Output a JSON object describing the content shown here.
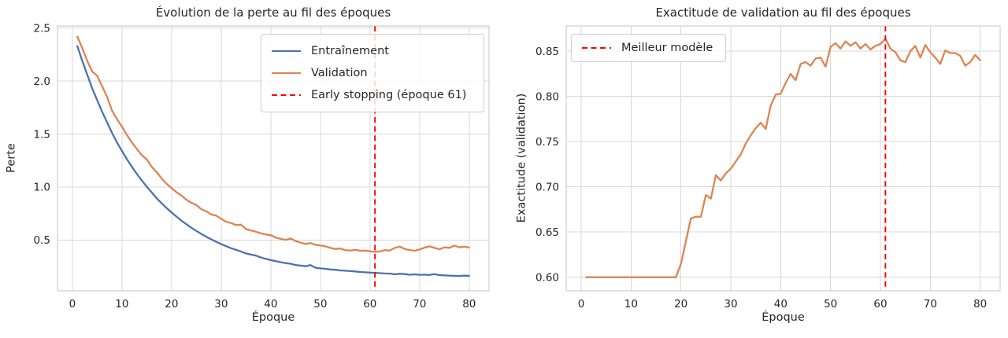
{
  "figure": {
    "background": "#ffffff",
    "text_color": "#262626",
    "grid_color": "#d8d8d8"
  },
  "chart_data": [
    {
      "type": "line",
      "title": "Évolution de la perte au fil des époques",
      "xlabel": "Époque",
      "ylabel": "Perte",
      "xlim": [
        -3,
        84
      ],
      "ylim": [
        0.02,
        2.52
      ],
      "xticks": [
        0,
        10,
        20,
        30,
        40,
        50,
        60,
        70,
        80
      ],
      "xtick_labels": [
        "0",
        "10",
        "20",
        "30",
        "40",
        "50",
        "60",
        "70",
        "80"
      ],
      "yticks": [
        0.5,
        1.0,
        1.5,
        2.0,
        2.5
      ],
      "ytick_labels": [
        "0.5",
        "1.0",
        "1.5",
        "2.0",
        "2.5"
      ],
      "grid": true,
      "legend_position": "upper right",
      "epochs": [
        1,
        2,
        3,
        4,
        5,
        6,
        7,
        8,
        9,
        10,
        11,
        12,
        13,
        14,
        15,
        16,
        17,
        18,
        19,
        20,
        21,
        22,
        23,
        24,
        25,
        26,
        27,
        28,
        29,
        30,
        31,
        32,
        33,
        34,
        35,
        36,
        37,
        38,
        39,
        40,
        41,
        42,
        43,
        44,
        45,
        46,
        47,
        48,
        49,
        50,
        51,
        52,
        53,
        54,
        55,
        56,
        57,
        58,
        59,
        60,
        61,
        62,
        63,
        64,
        65,
        66,
        67,
        68,
        69,
        70,
        71,
        72,
        73,
        74,
        75,
        76,
        77,
        78,
        79,
        80
      ],
      "series": [
        {
          "name": "Entraînement",
          "slug": "train-loss-line",
          "color": "#4c72b0",
          "style": "solid",
          "values": [
            2.33,
            2.19,
            2.06,
            1.93,
            1.82,
            1.71,
            1.61,
            1.51,
            1.42,
            1.34,
            1.262,
            1.19,
            1.123,
            1.061,
            1.003,
            0.948,
            0.893,
            0.846,
            0.801,
            0.759,
            0.72,
            0.682,
            0.648,
            0.615,
            0.585,
            0.557,
            0.53,
            0.506,
            0.483,
            0.461,
            0.441,
            0.422,
            0.407,
            0.39,
            0.373,
            0.362,
            0.352,
            0.335,
            0.322,
            0.31,
            0.3,
            0.291,
            0.281,
            0.276,
            0.263,
            0.258,
            0.252,
            0.263,
            0.238,
            0.232,
            0.228,
            0.222,
            0.219,
            0.213,
            0.21,
            0.206,
            0.203,
            0.198,
            0.195,
            0.192,
            0.19,
            0.187,
            0.184,
            0.183,
            0.176,
            0.181,
            0.178,
            0.172,
            0.176,
            0.171,
            0.173,
            0.17,
            0.177,
            0.168,
            0.166,
            0.164,
            0.162,
            0.16,
            0.163,
            0.162
          ]
        },
        {
          "name": "Validation",
          "slug": "val-loss-line",
          "color": "#dd8452",
          "style": "solid",
          "values": [
            2.42,
            2.31,
            2.19,
            2.09,
            2.05,
            1.95,
            1.85,
            1.72,
            1.64,
            1.57,
            1.49,
            1.42,
            1.36,
            1.3,
            1.26,
            1.19,
            1.14,
            1.08,
            1.03,
            0.99,
            0.95,
            0.92,
            0.88,
            0.85,
            0.83,
            0.79,
            0.77,
            0.74,
            0.73,
            0.7,
            0.672,
            0.66,
            0.64,
            0.645,
            0.602,
            0.59,
            0.578,
            0.562,
            0.552,
            0.545,
            0.522,
            0.51,
            0.5,
            0.515,
            0.49,
            0.475,
            0.462,
            0.47,
            0.455,
            0.448,
            0.44,
            0.425,
            0.415,
            0.42,
            0.405,
            0.4,
            0.408,
            0.398,
            0.4,
            0.394,
            0.388,
            0.392,
            0.405,
            0.4,
            0.425,
            0.438,
            0.415,
            0.405,
            0.398,
            0.41,
            0.428,
            0.44,
            0.425,
            0.412,
            0.43,
            0.426,
            0.447,
            0.43,
            0.437,
            0.428
          ]
        }
      ],
      "vline": {
        "x": 61,
        "color": "#ff0000",
        "style": "dashed",
        "label": "Early stopping (époque 61)"
      },
      "legend": [
        {
          "label": "Entraînement",
          "color": "#4c72b0",
          "dashed": false
        },
        {
          "label": "Validation",
          "color": "#dd8452",
          "dashed": false
        },
        {
          "label": "Early stopping (époque 61)",
          "color": "#ff0000",
          "dashed": true
        }
      ]
    },
    {
      "type": "line",
      "title": "Exactitude de validation au fil des époques",
      "xlabel": "Époque",
      "ylabel": "Exactitude (validation)",
      "xlim": [
        -3,
        84
      ],
      "ylim": [
        0.585,
        0.878
      ],
      "xticks": [
        0,
        10,
        20,
        30,
        40,
        50,
        60,
        70,
        80
      ],
      "xtick_labels": [
        "0",
        "10",
        "20",
        "30",
        "40",
        "50",
        "60",
        "70",
        "80"
      ],
      "yticks": [
        0.6,
        0.65,
        0.7,
        0.75,
        0.8,
        0.85
      ],
      "ytick_labels": [
        "0.60",
        "0.65",
        "0.70",
        "0.75",
        "0.80",
        "0.85"
      ],
      "grid": true,
      "legend_position": "upper left",
      "epochs": [
        1,
        2,
        3,
        4,
        5,
        6,
        7,
        8,
        9,
        10,
        11,
        12,
        13,
        14,
        15,
        16,
        17,
        18,
        19,
        20,
        21,
        22,
        23,
        24,
        25,
        26,
        27,
        28,
        29,
        30,
        31,
        32,
        33,
        34,
        35,
        36,
        37,
        38,
        39,
        40,
        41,
        42,
        43,
        44,
        45,
        46,
        47,
        48,
        49,
        50,
        51,
        52,
        53,
        54,
        55,
        56,
        57,
        58,
        59,
        60,
        61,
        62,
        63,
        64,
        65,
        66,
        67,
        68,
        69,
        70,
        71,
        72,
        73,
        74,
        75,
        76,
        77,
        78,
        79,
        80
      ],
      "series": [
        {
          "name": "Exactitude de validation",
          "slug": "val-accuracy-line",
          "color": "#dd8452",
          "style": "solid",
          "values": [
            0.6,
            0.6,
            0.6,
            0.6,
            0.6,
            0.6,
            0.6,
            0.6,
            0.6,
            0.6,
            0.6,
            0.6,
            0.6,
            0.6,
            0.6,
            0.6,
            0.6,
            0.6,
            0.6,
            0.615,
            0.64,
            0.665,
            0.667,
            0.667,
            0.691,
            0.687,
            0.713,
            0.707,
            0.715,
            0.72,
            0.728,
            0.736,
            0.748,
            0.757,
            0.765,
            0.771,
            0.764,
            0.79,
            0.802,
            0.803,
            0.815,
            0.825,
            0.818,
            0.836,
            0.838,
            0.834,
            0.842,
            0.843,
            0.833,
            0.855,
            0.859,
            0.853,
            0.861,
            0.856,
            0.86,
            0.853,
            0.858,
            0.852,
            0.856,
            0.858,
            0.864,
            0.853,
            0.849,
            0.84,
            0.838,
            0.85,
            0.856,
            0.843,
            0.857,
            0.849,
            0.843,
            0.836,
            0.851,
            0.848,
            0.848,
            0.845,
            0.834,
            0.838,
            0.846,
            0.84
          ]
        }
      ],
      "vline": {
        "x": 61,
        "color": "#ff0000",
        "style": "dashed",
        "label": "Meilleur modèle"
      },
      "legend": [
        {
          "label": "Meilleur modèle",
          "color": "#ff0000",
          "dashed": true
        }
      ]
    }
  ]
}
